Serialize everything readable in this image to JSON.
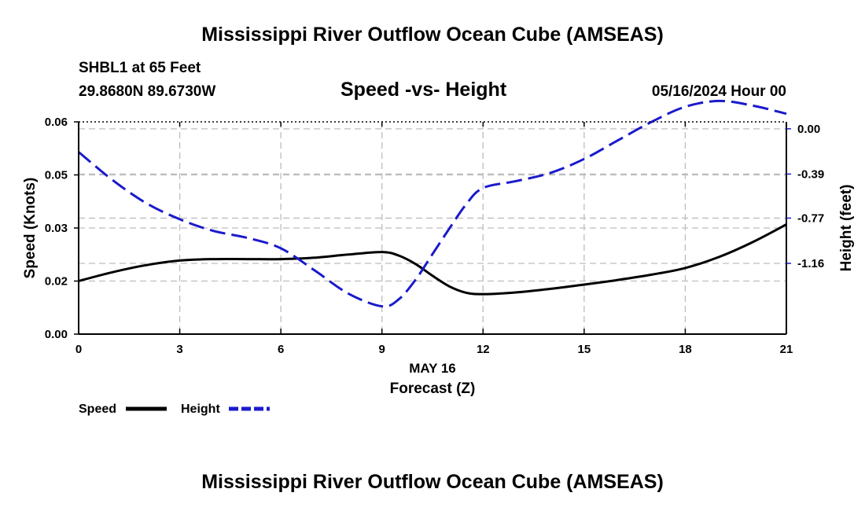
{
  "header": {
    "title": "Mississippi River Outflow Ocean Cube (AMSEAS)",
    "station": "SHBL1 at 65 Feet",
    "coordinates": "29.8680N  89.6730W",
    "subtitle": "Speed -vs- Height",
    "datetime": "05/16/2024 Hour 00"
  },
  "footer": {
    "title": "Mississippi River Outflow Ocean Cube (AMSEAS)"
  },
  "chart_data": {
    "type": "line",
    "title": "Speed -vs- Height",
    "xlabel": "Forecast (Z)",
    "xlabel_date": "MAY 16",
    "ylabel": "Speed (Knots)",
    "y2label": "Height (feet)",
    "xlim": [
      0,
      21
    ],
    "ylim": [
      0,
      0.06
    ],
    "y2lim": [
      -1.77,
      0.06
    ],
    "grid": true,
    "x_ticks": [
      "0",
      "3",
      "6",
      "9",
      "12",
      "15",
      "18",
      "21"
    ],
    "y_ticks": [
      "0.00",
      "0.02",
      "0.03",
      "0.05",
      "0.06"
    ],
    "y2_ticks": [
      "0.00",
      "-0.39",
      "-0.77",
      "-1.16"
    ],
    "series": [
      {
        "name": "Speed",
        "axis": "left",
        "color": "#000000",
        "dash": "solid",
        "x": [
          0,
          1,
          2,
          3,
          4,
          5,
          6,
          7,
          8,
          9,
          9.5,
          10,
          10.5,
          11,
          11.5,
          12,
          13,
          14,
          15,
          16,
          17,
          18,
          19,
          20,
          21
        ],
        "values": [
          0.015,
          0.0175,
          0.0195,
          0.0208,
          0.0212,
          0.0212,
          0.0212,
          0.0216,
          0.0225,
          0.0232,
          0.0222,
          0.0198,
          0.0165,
          0.0135,
          0.0117,
          0.0113,
          0.0118,
          0.0128,
          0.014,
          0.0153,
          0.0168,
          0.0187,
          0.0218,
          0.026,
          0.031
        ]
      },
      {
        "name": "Height",
        "axis": "right",
        "color": "#1a1acc",
        "dash": "dashed",
        "x": [
          0,
          1,
          2,
          3,
          4,
          5,
          6,
          7,
          8,
          9,
          9.5,
          10,
          10.5,
          11,
          11.5,
          12,
          13,
          14,
          15,
          16,
          17,
          18,
          19,
          20,
          21
        ],
        "values": [
          -0.2,
          -0.44,
          -0.64,
          -0.78,
          -0.88,
          -0.94,
          -1.03,
          -1.22,
          -1.42,
          -1.53,
          -1.47,
          -1.3,
          -1.08,
          -0.86,
          -0.65,
          -0.51,
          -0.45,
          -0.38,
          -0.26,
          -0.1,
          0.06,
          0.19,
          0.24,
          0.2,
          0.13
        ]
      }
    ]
  }
}
